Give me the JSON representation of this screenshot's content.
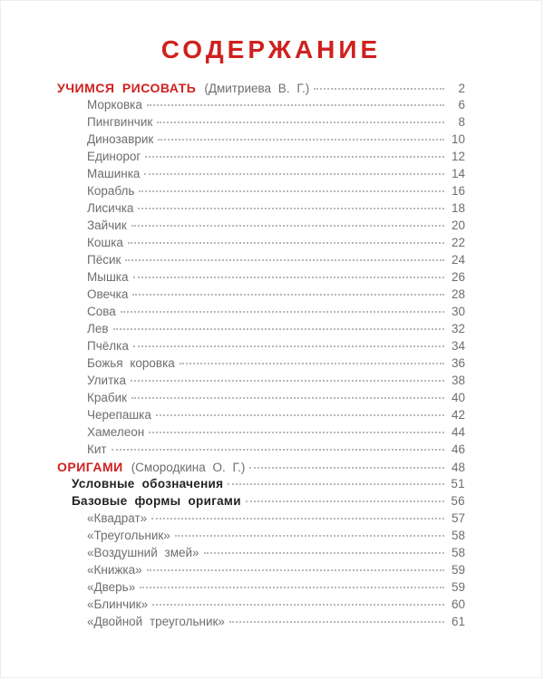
{
  "page": {
    "title": "СОДЕРЖАНИЕ",
    "accent_color": "#cf211f",
    "text_color": "#6e6e6e"
  },
  "toc": {
    "sections": [
      {
        "title": "УЧИМСЯ РИСОВАТЬ",
        "author": "(Дмитриева В. Г.)",
        "page": "2",
        "entries": [
          {
            "label": "Морковка",
            "page": "6"
          },
          {
            "label": "Пингвинчик",
            "page": "8"
          },
          {
            "label": "Динозаврик",
            "page": "10"
          },
          {
            "label": "Единорог",
            "page": "12"
          },
          {
            "label": "Машинка",
            "page": "14"
          },
          {
            "label": "Корабль",
            "page": "16"
          },
          {
            "label": "Лисичка",
            "page": "18"
          },
          {
            "label": "Зайчик",
            "page": "20"
          },
          {
            "label": "Кошка",
            "page": "22"
          },
          {
            "label": "Пёсик",
            "page": "24"
          },
          {
            "label": "Мышка",
            "page": "26"
          },
          {
            "label": "Овечка",
            "page": "28"
          },
          {
            "label": "Сова",
            "page": "30"
          },
          {
            "label": "Лев",
            "page": "32"
          },
          {
            "label": "Пчёлка",
            "page": "34"
          },
          {
            "label": "Божья коровка",
            "page": "36"
          },
          {
            "label": "Улитка",
            "page": "38"
          },
          {
            "label": "Крабик",
            "page": "40"
          },
          {
            "label": "Черепашка",
            "page": "42"
          },
          {
            "label": "Хамелеон",
            "page": "44"
          },
          {
            "label": "Кит",
            "page": "46"
          }
        ]
      },
      {
        "title": "ОРИГАМИ",
        "author": "(Смородкина О. Г.)",
        "page": "48",
        "entries": [
          {
            "label": "Условные обозначения",
            "page": "51",
            "bold": true
          },
          {
            "label": "Базовые формы оригами",
            "page": "56",
            "bold": true
          },
          {
            "label": "«Квадрат»",
            "page": "57"
          },
          {
            "label": "«Треугольник»",
            "page": "58"
          },
          {
            "label": "«Воздушний змей»",
            "page": "58"
          },
          {
            "label": "«Книжка»",
            "page": "59"
          },
          {
            "label": "«Дверь»",
            "page": "59"
          },
          {
            "label": "«Блинчик»",
            "page": "60"
          },
          {
            "label": "«Двойной треугольник»",
            "page": "61"
          }
        ]
      }
    ]
  }
}
